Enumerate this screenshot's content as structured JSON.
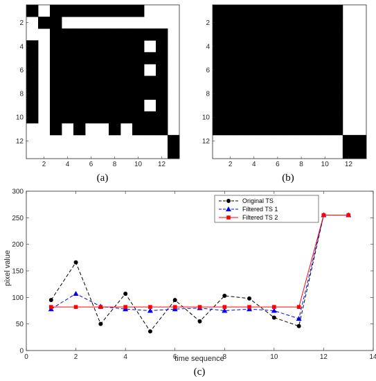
{
  "chart_data": [
    {
      "type": "heatmap",
      "panel_label": "(a)",
      "rows": 13,
      "cols": 13,
      "x_ticks": [
        2,
        4,
        6,
        8,
        10,
        12
      ],
      "y_ticks": [
        2,
        4,
        6,
        8,
        10,
        12
      ],
      "colors": {
        "black": "#000000",
        "white": "#ffffff"
      },
      "matrix": [
        [
          1,
          0,
          1,
          1,
          1,
          1,
          1,
          1,
          1,
          1,
          0,
          0,
          0
        ],
        [
          0,
          1,
          1,
          0,
          0,
          0,
          0,
          0,
          0,
          0,
          0,
          0,
          0
        ],
        [
          0,
          0,
          1,
          1,
          1,
          1,
          1,
          1,
          1,
          1,
          1,
          1,
          0
        ],
        [
          1,
          0,
          1,
          1,
          1,
          1,
          1,
          1,
          1,
          1,
          0,
          1,
          0
        ],
        [
          1,
          0,
          1,
          1,
          1,
          1,
          1,
          1,
          1,
          1,
          1,
          1,
          0
        ],
        [
          1,
          0,
          1,
          1,
          1,
          1,
          1,
          1,
          1,
          1,
          0,
          1,
          0
        ],
        [
          1,
          0,
          1,
          1,
          1,
          1,
          1,
          1,
          1,
          1,
          1,
          1,
          0
        ],
        [
          1,
          0,
          1,
          1,
          1,
          1,
          1,
          1,
          1,
          1,
          1,
          1,
          0
        ],
        [
          1,
          0,
          1,
          1,
          1,
          1,
          1,
          1,
          1,
          1,
          0,
          1,
          0
        ],
        [
          1,
          0,
          1,
          1,
          1,
          1,
          1,
          1,
          1,
          1,
          1,
          1,
          0
        ],
        [
          0,
          0,
          1,
          0,
          1,
          0,
          0,
          1,
          0,
          1,
          1,
          1,
          0
        ],
        [
          0,
          0,
          0,
          0,
          0,
          0,
          0,
          0,
          0,
          0,
          0,
          0,
          1
        ],
        [
          0,
          0,
          0,
          0,
          0,
          0,
          0,
          0,
          0,
          0,
          0,
          0,
          1
        ]
      ]
    },
    {
      "type": "heatmap",
      "panel_label": "(b)",
      "rows": 13,
      "cols": 13,
      "x_ticks": [
        2,
        4,
        6,
        8,
        10,
        12
      ],
      "y_ticks": [
        2,
        4,
        6,
        8,
        10,
        12
      ],
      "colors": {
        "black": "#000000",
        "white": "#ffffff"
      },
      "block_size": 11
    },
    {
      "type": "line",
      "panel_label": "(c)",
      "xlabel": "time sequence",
      "ylabel": "pixel value",
      "xlim": [
        0,
        14
      ],
      "ylim": [
        0,
        300
      ],
      "x_ticks": [
        0,
        2,
        4,
        6,
        8,
        10,
        12,
        14
      ],
      "y_ticks": [
        0,
        50,
        100,
        150,
        200,
        250,
        300
      ],
      "legend_position": "top-right",
      "x": [
        1,
        2,
        3,
        4,
        5,
        6,
        7,
        8,
        9,
        10,
        11,
        12,
        13
      ],
      "series": [
        {
          "name": "Original TS",
          "color": "#000000",
          "marker": "circle",
          "dash": "dashed",
          "values": [
            95,
            166,
            50,
            107,
            36,
            95,
            55,
            103,
            98,
            62,
            46,
            255,
            255
          ]
        },
        {
          "name": "Filtered TS 1",
          "color": "#0000ff",
          "marker": "triangle",
          "dash": "dashed",
          "values": [
            78,
            107,
            83,
            78,
            75,
            78,
            80,
            75,
            78,
            75,
            60,
            255,
            255
          ]
        },
        {
          "name": "Filtered TS 2",
          "color": "#ff0000",
          "marker": "square",
          "dash": "solid",
          "values": [
            82,
            82,
            82,
            82,
            82,
            82,
            82,
            82,
            82,
            82,
            82,
            255,
            255
          ]
        }
      ]
    }
  ]
}
